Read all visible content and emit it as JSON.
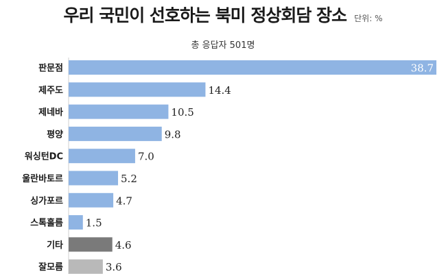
{
  "chart_data": {
    "type": "bar",
    "orientation": "horizontal",
    "title": "우리 국민이 선호하는 북미 정상회담 장소",
    "unit": "단위: %",
    "subtitle": "총 응답자 501명",
    "categories": [
      "판문점",
      "제주도",
      "제네바",
      "평양",
      "워싱턴DC",
      "울란바토르",
      "싱가포르",
      "스톡홀름",
      "기타",
      "잘모름"
    ],
    "values": [
      38.7,
      14.4,
      10.5,
      9.8,
      7.0,
      5.2,
      4.7,
      1.5,
      4.6,
      3.6
    ],
    "value_labels": [
      "38.7",
      "14.4",
      "10.5",
      "9.8",
      "7.0",
      "5.2",
      "4.7",
      "1.5",
      "4.6",
      "3.6"
    ],
    "colors": [
      "#8fb4e3",
      "#8fb4e3",
      "#8fb4e3",
      "#8fb4e3",
      "#8fb4e3",
      "#8fb4e3",
      "#8fb4e3",
      "#8fb4e3",
      "#7a7a7a",
      "#b9b9b9"
    ],
    "xlim": [
      0,
      38.7
    ],
    "grid": false,
    "legend": "none"
  }
}
